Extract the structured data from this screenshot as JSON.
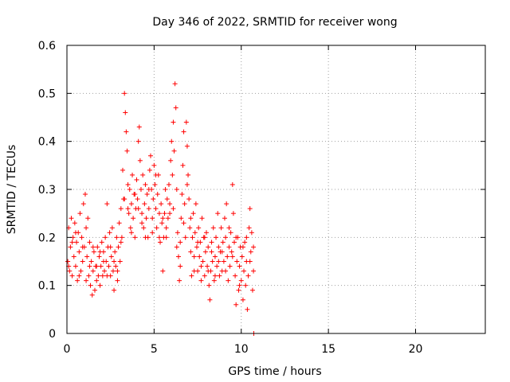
{
  "chart_data": {
    "type": "scatter",
    "title": "Day 346 of 2022, SRMTID for receiver wong",
    "xlabel": "GPS time / hours",
    "ylabel": "SRMTID / TECUs",
    "xlim": [
      0,
      24
    ],
    "ylim": [
      0,
      0.6
    ],
    "xticks": [
      0,
      5,
      10,
      15,
      20
    ],
    "xtick_labels": [
      "0",
      "5",
      "10",
      "15",
      "20"
    ],
    "yticks": [
      0,
      0.1,
      0.2,
      0.3,
      0.4,
      0.5,
      0.6
    ],
    "ytick_labels": [
      "0",
      "0.1",
      "0.2",
      "0.3",
      "0.4",
      "0.5",
      "0.6"
    ],
    "grid": true,
    "marker": "+",
    "series_color": "#ff0000",
    "series": [
      {
        "name": "SRMTID",
        "points": [
          [
            0.05,
            0.15
          ],
          [
            0.1,
            0.22
          ],
          [
            0.15,
            0.13
          ],
          [
            0.2,
            0.18
          ],
          [
            0.25,
            0.24
          ],
          [
            0.3,
            0.12
          ],
          [
            0.35,
            0.2
          ],
          [
            0.4,
            0.16
          ],
          [
            0.45,
            0.23
          ],
          [
            0.5,
            0.14
          ],
          [
            0.55,
            0.19
          ],
          [
            0.6,
            0.11
          ],
          [
            0.65,
            0.21
          ],
          [
            0.7,
            0.17
          ],
          [
            0.75,
            0.25
          ],
          [
            0.8,
            0.13
          ],
          [
            0.85,
            0.2
          ],
          [
            0.9,
            0.15
          ],
          [
            0.95,
            0.27
          ],
          [
            1.0,
            0.18
          ],
          [
            1.05,
            0.29
          ],
          [
            1.1,
            0.22
          ],
          [
            1.15,
            0.16
          ],
          [
            1.2,
            0.24
          ],
          [
            1.25,
            0.12
          ],
          [
            1.3,
            0.19
          ],
          [
            1.35,
            0.1
          ],
          [
            1.4,
            0.15
          ],
          [
            1.45,
            0.08
          ],
          [
            1.5,
            0.13
          ],
          [
            1.55,
            0.17
          ],
          [
            1.6,
            0.09
          ],
          [
            1.65,
            0.14
          ],
          [
            1.7,
            0.11
          ],
          [
            1.75,
            0.18
          ],
          [
            1.8,
            0.12
          ],
          [
            1.85,
            0.16
          ],
          [
            1.9,
            0.1
          ],
          [
            1.95,
            0.14
          ],
          [
            2.0,
            0.19
          ],
          [
            2.05,
            0.12
          ],
          [
            2.1,
            0.17
          ],
          [
            2.15,
            0.13
          ],
          [
            2.2,
            0.2
          ],
          [
            2.25,
            0.15
          ],
          [
            2.3,
            0.27
          ],
          [
            2.35,
            0.18
          ],
          [
            2.4,
            0.14
          ],
          [
            2.45,
            0.21
          ],
          [
            2.5,
            0.12
          ],
          [
            2.55,
            0.16
          ],
          [
            2.6,
            0.22
          ],
          [
            2.65,
            0.13
          ],
          [
            2.7,
            0.09
          ],
          [
            2.75,
            0.17
          ],
          [
            2.8,
            0.14
          ],
          [
            2.85,
            0.2
          ],
          [
            2.9,
            0.11
          ],
          [
            2.95,
            0.18
          ],
          [
            3.0,
            0.23
          ],
          [
            3.05,
            0.15
          ],
          [
            3.1,
            0.26
          ],
          [
            3.15,
            0.2
          ],
          [
            3.2,
            0.34
          ],
          [
            3.25,
            0.28
          ],
          [
            3.3,
            0.5
          ],
          [
            3.35,
            0.46
          ],
          [
            3.4,
            0.42
          ],
          [
            3.45,
            0.38
          ],
          [
            3.5,
            0.31
          ],
          [
            3.55,
            0.25
          ],
          [
            3.6,
            0.3
          ],
          [
            3.65,
            0.22
          ],
          [
            3.7,
            0.27
          ],
          [
            3.75,
            0.33
          ],
          [
            3.8,
            0.24
          ],
          [
            3.85,
            0.29
          ],
          [
            3.9,
            0.2
          ],
          [
            3.95,
            0.26
          ],
          [
            4.0,
            0.32
          ],
          [
            4.05,
            0.28
          ],
          [
            4.1,
            0.4
          ],
          [
            4.15,
            0.43
          ],
          [
            4.2,
            0.36
          ],
          [
            4.25,
            0.3
          ],
          [
            4.3,
            0.25
          ],
          [
            4.35,
            0.33
          ],
          [
            4.4,
            0.22
          ],
          [
            4.45,
            0.27
          ],
          [
            4.5,
            0.31
          ],
          [
            4.55,
            0.24
          ],
          [
            4.6,
            0.29
          ],
          [
            4.65,
            0.2
          ],
          [
            4.7,
            0.26
          ],
          [
            4.75,
            0.34
          ],
          [
            4.8,
            0.37
          ],
          [
            4.85,
            0.3
          ],
          [
            4.9,
            0.24
          ],
          [
            4.95,
            0.28
          ],
          [
            5.0,
            0.35
          ],
          [
            5.05,
            0.31
          ],
          [
            5.1,
            0.26
          ],
          [
            5.15,
            0.22
          ],
          [
            5.2,
            0.29
          ],
          [
            5.25,
            0.33
          ],
          [
            5.3,
            0.25
          ],
          [
            5.35,
            0.19
          ],
          [
            5.4,
            0.27
          ],
          [
            5.45,
            0.23
          ],
          [
            5.5,
            0.13
          ],
          [
            5.55,
            0.2
          ],
          [
            5.6,
            0.25
          ],
          [
            5.65,
            0.3
          ],
          [
            5.7,
            0.22
          ],
          [
            5.75,
            0.28
          ],
          [
            5.8,
            0.24
          ],
          [
            5.85,
            0.31
          ],
          [
            5.9,
            0.27
          ],
          [
            5.95,
            0.36
          ],
          [
            6.0,
            0.4
          ],
          [
            6.05,
            0.33
          ],
          [
            6.1,
            0.44
          ],
          [
            6.15,
            0.38
          ],
          [
            6.2,
            0.52
          ],
          [
            6.25,
            0.47
          ],
          [
            6.3,
            0.3
          ],
          [
            6.35,
            0.21
          ],
          [
            6.4,
            0.16
          ],
          [
            6.45,
            0.11
          ],
          [
            6.5,
            0.19
          ],
          [
            6.55,
            0.24
          ],
          [
            6.6,
            0.29
          ],
          [
            6.65,
            0.35
          ],
          [
            6.7,
            0.42
          ],
          [
            6.75,
            0.27
          ],
          [
            6.8,
            0.2
          ],
          [
            6.85,
            0.44
          ],
          [
            6.9,
            0.39
          ],
          [
            6.95,
            0.33
          ],
          [
            7.0,
            0.28
          ],
          [
            7.05,
            0.22
          ],
          [
            7.1,
            0.17
          ],
          [
            7.15,
            0.12
          ],
          [
            7.2,
            0.2
          ],
          [
            7.25,
            0.25
          ],
          [
            7.3,
            0.16
          ],
          [
            7.35,
            0.21
          ],
          [
            7.4,
            0.27
          ],
          [
            7.45,
            0.18
          ],
          [
            7.5,
            0.13
          ],
          [
            7.55,
            0.22
          ],
          [
            7.6,
            0.16
          ],
          [
            7.65,
            0.19
          ],
          [
            7.7,
            0.11
          ],
          [
            7.75,
            0.24
          ],
          [
            7.8,
            0.15
          ],
          [
            7.85,
            0.2
          ],
          [
            7.9,
            0.12
          ],
          [
            7.95,
            0.17
          ],
          [
            8.0,
            0.21
          ],
          [
            8.05,
            0.14
          ],
          [
            8.1,
            0.18
          ],
          [
            8.15,
            0.1
          ],
          [
            8.2,
            0.07
          ],
          [
            8.25,
            0.13
          ],
          [
            8.3,
            0.19
          ],
          [
            8.35,
            0.15
          ],
          [
            8.4,
            0.22
          ],
          [
            8.45,
            0.11
          ],
          [
            8.5,
            0.16
          ],
          [
            8.55,
            0.2
          ],
          [
            8.6,
            0.14
          ],
          [
            8.65,
            0.25
          ],
          [
            8.7,
            0.18
          ],
          [
            8.75,
            0.12
          ],
          [
            8.8,
            0.17
          ],
          [
            8.85,
            0.22
          ],
          [
            8.9,
            0.13
          ],
          [
            8.95,
            0.19
          ],
          [
            9.0,
            0.15
          ],
          [
            9.05,
            0.24
          ],
          [
            9.1,
            0.2
          ],
          [
            9.15,
            0.27
          ],
          [
            9.2,
            0.16
          ],
          [
            9.25,
            0.11
          ],
          [
            9.3,
            0.18
          ],
          [
            9.35,
            0.14
          ],
          [
            9.4,
            0.21
          ],
          [
            9.45,
            0.17
          ],
          [
            9.5,
            0.31
          ],
          [
            9.55,
            0.25
          ],
          [
            9.6,
            0.19
          ],
          [
            9.65,
            0.12
          ],
          [
            9.7,
            0.06
          ],
          [
            9.75,
            0.15
          ],
          [
            9.8,
            0.2
          ],
          [
            9.85,
            0.09
          ],
          [
            9.9,
            0.14
          ],
          [
            9.95,
            0.18
          ],
          [
            10.0,
            0.11
          ],
          [
            10.05,
            0.16
          ],
          [
            10.1,
            0.07
          ],
          [
            10.15,
            0.13
          ],
          [
            10.2,
            0.19
          ],
          [
            10.25,
            0.1
          ],
          [
            10.3,
            0.15
          ],
          [
            10.35,
            0.05
          ],
          [
            10.4,
            0.12
          ],
          [
            10.45,
            0.22
          ],
          [
            10.5,
            0.26
          ],
          [
            10.55,
            0.17
          ],
          [
            10.6,
            0.21
          ],
          [
            10.65,
            0.09
          ],
          [
            10.7,
            0.13
          ],
          [
            10.72,
            0.0
          ],
          [
            0.1,
            0.14
          ],
          [
            0.3,
            0.19
          ],
          [
            0.5,
            0.21
          ],
          [
            0.7,
            0.12
          ],
          [
            0.9,
            0.18
          ],
          [
            1.1,
            0.11
          ],
          [
            1.3,
            0.14
          ],
          [
            1.5,
            0.18
          ],
          [
            1.7,
            0.14
          ],
          [
            1.9,
            0.17
          ],
          [
            2.1,
            0.15
          ],
          [
            2.3,
            0.12
          ],
          [
            2.5,
            0.18
          ],
          [
            2.7,
            0.15
          ],
          [
            2.9,
            0.13
          ],
          [
            3.1,
            0.19
          ],
          [
            3.3,
            0.28
          ],
          [
            3.5,
            0.26
          ],
          [
            3.7,
            0.21
          ],
          [
            3.9,
            0.29
          ],
          [
            4.1,
            0.26
          ],
          [
            4.3,
            0.23
          ],
          [
            4.5,
            0.2
          ],
          [
            4.7,
            0.3
          ],
          [
            4.9,
            0.21
          ],
          [
            5.1,
            0.33
          ],
          [
            5.3,
            0.2
          ],
          [
            5.5,
            0.24
          ],
          [
            5.7,
            0.2
          ],
          [
            5.9,
            0.25
          ],
          [
            6.1,
            0.26
          ],
          [
            6.3,
            0.18
          ],
          [
            6.5,
            0.14
          ],
          [
            6.7,
            0.23
          ],
          [
            6.9,
            0.31
          ],
          [
            7.1,
            0.24
          ],
          [
            7.3,
            0.13
          ],
          [
            7.5,
            0.19
          ],
          [
            7.7,
            0.14
          ],
          [
            7.9,
            0.2
          ],
          [
            8.1,
            0.13
          ],
          [
            8.3,
            0.17
          ],
          [
            8.5,
            0.12
          ],
          [
            8.7,
            0.15
          ],
          [
            8.9,
            0.17
          ],
          [
            9.1,
            0.13
          ],
          [
            9.3,
            0.22
          ],
          [
            9.5,
            0.16
          ],
          [
            9.7,
            0.2
          ],
          [
            9.9,
            0.1
          ],
          [
            10.1,
            0.18
          ],
          [
            10.3,
            0.2
          ],
          [
            10.5,
            0.15
          ],
          [
            10.7,
            0.18
          ]
        ]
      }
    ]
  }
}
